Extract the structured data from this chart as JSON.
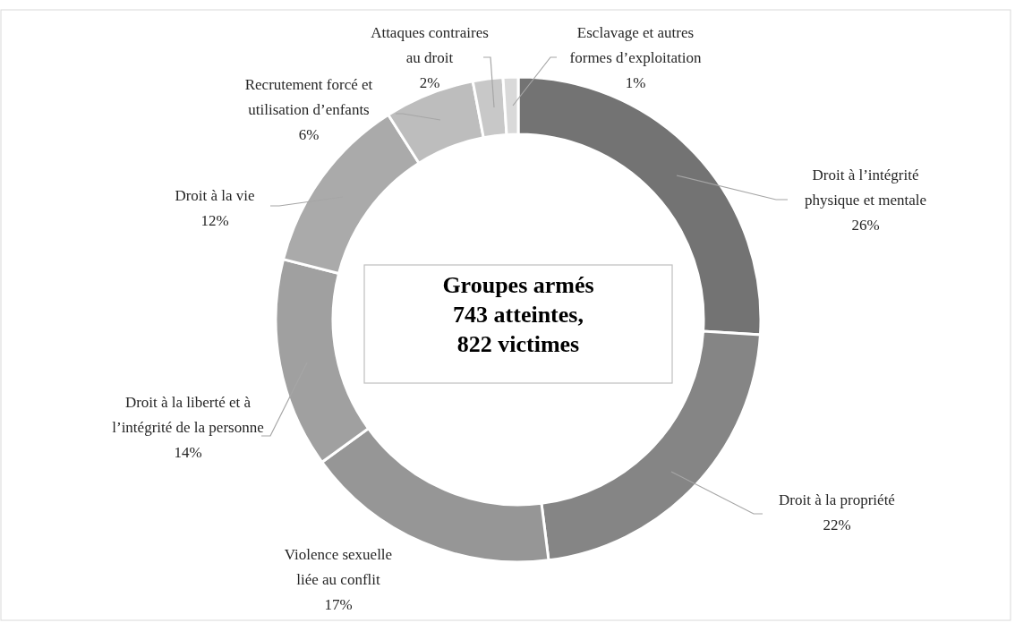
{
  "chart_data": {
    "type": "donut",
    "title": "Groupes armés",
    "subtitle": "743 atteintes, 822 victimes",
    "categories": [
      "Droit à l’intégrité physique et mentale",
      "Droit à la propriété",
      "Violence sexuelle liée au conflit",
      "Droit à la liberté et à l’intégrité de la personne",
      "Droit à la vie",
      "Recrutement forcé et utilisation d’enfants",
      "Attaques contraires au droit",
      "Esclavage et autres formes d’exploitation"
    ],
    "values": [
      26,
      22,
      17,
      14,
      12,
      6,
      2,
      1
    ],
    "value_labels": [
      "26%",
      "22%",
      "17%",
      "14%",
      "12%",
      "6%",
      "2%",
      "1%"
    ],
    "colors": [
      "#737373",
      "#858585",
      "#969696",
      "#a0a0a0",
      "#aaaaaa",
      "#bdbdbd",
      "#c8c8c8",
      "#d9d9d9"
    ]
  }
}
